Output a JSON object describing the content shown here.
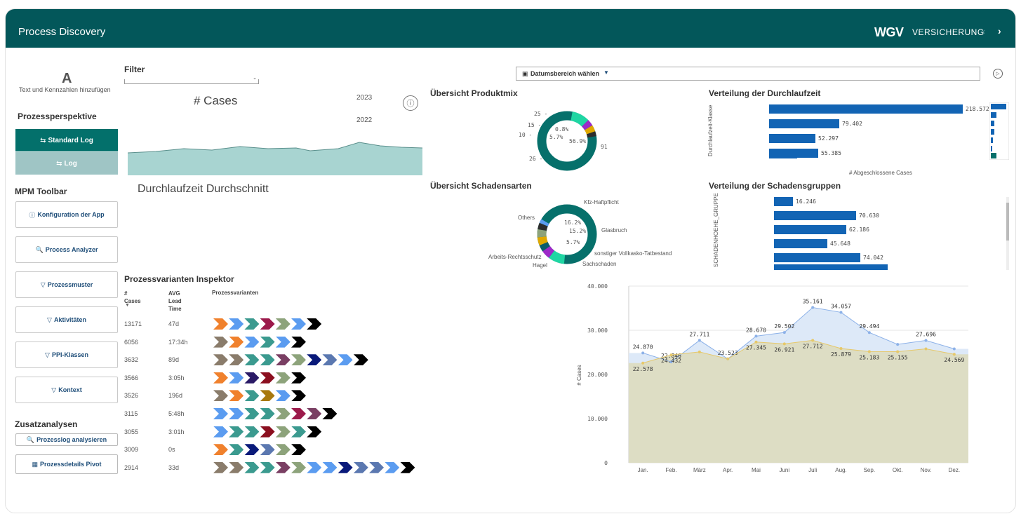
{
  "header": {
    "title": "Process Discovery",
    "logo": "WGV",
    "logo_sub": "VERSICHERUNG",
    "prev_icon": "chevron-left-icon",
    "next_icon": "chevron-right-icon"
  },
  "sidebar": {
    "text_widget": {
      "glyph": "A",
      "label": "Text und Kennzahlen hinzufügen"
    },
    "perspective_title": "Prozessperspektive",
    "standard_log": "Standard Log",
    "log": "Log",
    "toolbar_title": "MPM Toolbar",
    "tools": [
      {
        "label": "Konfiguration der App",
        "icon": "ⓘ"
      },
      {
        "label": "Process Analyzer",
        "icon": "🔍"
      },
      {
        "label": "Prozessmuster",
        "icon": "▽"
      },
      {
        "label": "Aktivitäten",
        "icon": "▽"
      },
      {
        "label": "PPI-Klassen",
        "icon": "▽"
      },
      {
        "label": "Kontext",
        "icon": "▽"
      }
    ],
    "extra_title": "Zusatzanalysen",
    "extras": [
      {
        "label": "Prozesslog analysieren",
        "icon": "🔍"
      },
      {
        "label": "Prozessdetails Pivot",
        "icon": "▦"
      }
    ]
  },
  "filter": {
    "label": "Filter",
    "value": ""
  },
  "cases_kpi": {
    "title": "# Cases",
    "years": [
      "2023",
      "2022"
    ]
  },
  "lead_time_kpi": {
    "title": "Durchlaufzeit Durchschnitt"
  },
  "date_range": {
    "label": "Datumsbereich wählen"
  },
  "produktmix": {
    "title": "Übersicht Produktmix",
    "labels": [
      "25 -",
      "15 -",
      "10 -",
      "26 -"
    ],
    "center": [
      "0.8%",
      "5.7%",
      "56.9%"
    ],
    "outer": "91"
  },
  "schadenarten": {
    "title": "Übersicht Schadensarten",
    "labels": [
      "Kfz-Haftpflicht",
      "Others",
      "Glasbruch",
      "sonstiger Vollkasko-Tatbestand",
      "Sachschaden",
      "Arbeits-Rechtsschutz",
      "Hagel"
    ],
    "center": [
      "16.2%",
      "15.2%",
      "5.7%"
    ]
  },
  "durchlaufzeit": {
    "title": "Verteilung der Durchlaufzeit",
    "ylabel": "Durchlaufzeit-Klasse",
    "xlabel": "# Abgeschlossene Cases",
    "values": [
      "218.572",
      "79.402",
      "52.297",
      "55.385"
    ],
    "fractions": [
      1.0,
      0.363,
      0.239,
      0.253
    ]
  },
  "schadensgruppen": {
    "title": "Verteilung der Schadensgruppen",
    "ylabel": "SCHADENHOEHE_GRUPPE",
    "values": [
      "16.246",
      "70.630",
      "62.186",
      "45.648",
      "74.042"
    ],
    "fractions": [
      0.219,
      0.954,
      0.84,
      0.617,
      1.0
    ]
  },
  "inspector": {
    "title": "Prozessvarianten Inspektor",
    "col_cases": "# Cases",
    "col_time": "AVG Lead Time",
    "col_variants": "Prozessvarianten",
    "rows": [
      {
        "cases": "13171",
        "time": "47d",
        "steps": [
          "#f0812d",
          "#5b9cf0",
          "#3b9a8f",
          "#9c1a4b",
          "#8da37b",
          "#5b9cf0",
          "#000000"
        ]
      },
      {
        "cases": "6056",
        "time": "17:34h",
        "steps": [
          "#8a7c6b",
          "#f0812d",
          "#5b9cf0",
          "#3b9a8f",
          "#5b9cf0",
          "#000000"
        ]
      },
      {
        "cases": "3632",
        "time": "89d",
        "steps": [
          "#8a7c6b",
          "#8a7c6b",
          "#3b9a8f",
          "#3b9a8f",
          "#7a3f63",
          "#8da37b",
          "#0a1a7a",
          "#5b78b0",
          "#5b9cf0",
          "#000000"
        ]
      },
      {
        "cases": "3566",
        "time": "3:05h",
        "steps": [
          "#f0812d",
          "#5b9cf0",
          "#2a1a66",
          "#8b0f1f",
          "#8da37b",
          "#000000"
        ]
      },
      {
        "cases": "3526",
        "time": "196d",
        "steps": [
          "#8a7c6b",
          "#f0812d",
          "#3b9a8f",
          "#a8790f",
          "#5b9cf0",
          "#000000"
        ]
      },
      {
        "cases": "3115",
        "time": "5:48h",
        "steps": [
          "#5b9cf0",
          "#5b9cf0",
          "#3b9a8f",
          "#3b9a8f",
          "#8da37b",
          "#9c1a4b",
          "#7a3f63",
          "#000000"
        ]
      },
      {
        "cases": "3055",
        "time": "3:01h",
        "steps": [
          "#5b9cf0",
          "#3b9a8f",
          "#3b9a8f",
          "#8b0f1f",
          "#8da37b",
          "#3b9a8f",
          "#000000"
        ]
      },
      {
        "cases": "3009",
        "time": "0s",
        "steps": [
          "#f0812d",
          "#3b9a8f",
          "#0a1a7a",
          "#5b78b0",
          "#8da37b",
          "#000000"
        ]
      },
      {
        "cases": "2914",
        "time": "33d",
        "steps": [
          "#8a7c6b",
          "#8a7c6b",
          "#3b9a8f",
          "#3b9a8f",
          "#7a3f63",
          "#8da37b",
          "#5b9cf0",
          "#5b9cf0",
          "#0a1a7a",
          "#5b78b0",
          "#5b78b0",
          "#5b9cf0",
          "#000000"
        ]
      }
    ]
  },
  "chart_data": {
    "type": "area",
    "ylabel": "# Cases",
    "categories": [
      "Jan.",
      "Feb.",
      "März",
      "Apr.",
      "Mai",
      "Juni",
      "Juli",
      "Aug.",
      "Sep.",
      "Okt.",
      "Nov.",
      "Dez."
    ],
    "ylim": [
      0,
      40000
    ],
    "yticks": [
      "0",
      "10.000",
      "20.000",
      "30.000",
      "40.000"
    ],
    "series": [
      {
        "values": [
          24870,
          22846,
          27711,
          23523,
          28670,
          29502,
          35161,
          34057,
          29494,
          26800,
          27696,
          25800
        ],
        "labels": [
          "24.870",
          "22.846",
          "27.711",
          "23.523",
          "28.670",
          "29.502",
          "35.161",
          "34.057",
          "29.494",
          "",
          "27.696",
          ""
        ],
        "color": "#8cb1e8"
      },
      {
        "values": [
          22578,
          24432,
          25100,
          23523,
          27345,
          26921,
          27712,
          25879,
          25183,
          25155,
          25800,
          24569
        ],
        "labels": [
          "22.578",
          "24.432",
          "",
          "",
          "27.345",
          "26.921",
          "27.712",
          "25.879",
          "25.183",
          "25.155",
          "",
          "24.569"
        ],
        "color": "#e6c86a"
      }
    ]
  },
  "colors": {
    "header": "#03575a",
    "accent": "#03706b",
    "bar": "#1264b4"
  }
}
